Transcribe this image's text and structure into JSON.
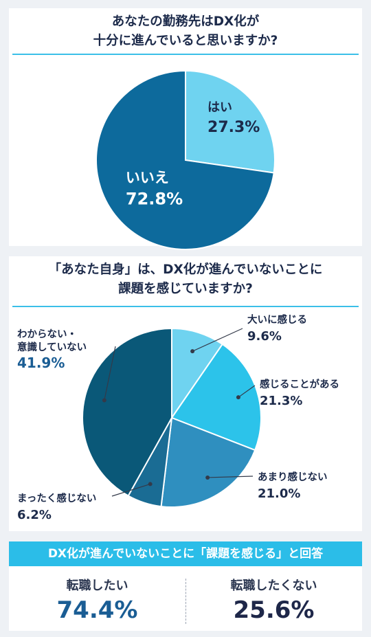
{
  "chart_data": [
    {
      "type": "pie",
      "title_lines": [
        "あなたの勤務先はDX化が",
        "十分に進んでいると思いますか?"
      ],
      "slices": [
        {
          "label": "はい",
          "value": 27.3,
          "display": "27.3%",
          "color": "#6fd3f0"
        },
        {
          "label": "いいえ",
          "value": 72.8,
          "display": "72.8%",
          "color": "#0d6a9c"
        }
      ]
    },
    {
      "type": "pie",
      "title_lines": [
        "「あなた自身」は、DX化が進んでいないことに",
        "課題を感じていますか?"
      ],
      "slices": [
        {
          "label": "大いに感じる",
          "value": 9.6,
          "display": "9.6%",
          "color": "#6fd3f0"
        },
        {
          "label": "感じることがある",
          "value": 21.3,
          "display": "21.3%",
          "color": "#2cc3ea"
        },
        {
          "label": "あまり感じない",
          "value": 21.0,
          "display": "21.0%",
          "color": "#2f8fbf"
        },
        {
          "label": "まったく感じない",
          "value": 6.2,
          "display": "6.2%",
          "color": "#1a6c94"
        },
        {
          "label": "わからない・意識していない",
          "label_lines": [
            "わからない・",
            "意識していない"
          ],
          "value": 41.9,
          "display": "41.9%",
          "color": "#0a5878"
        }
      ]
    }
  ],
  "summary": {
    "banner": "DX化が進んでいないことに「課題を感じる」と回答",
    "left": {
      "label": "転職したい",
      "value": "74.4%"
    },
    "right": {
      "label": "転職したくない",
      "value": "25.6%"
    }
  }
}
